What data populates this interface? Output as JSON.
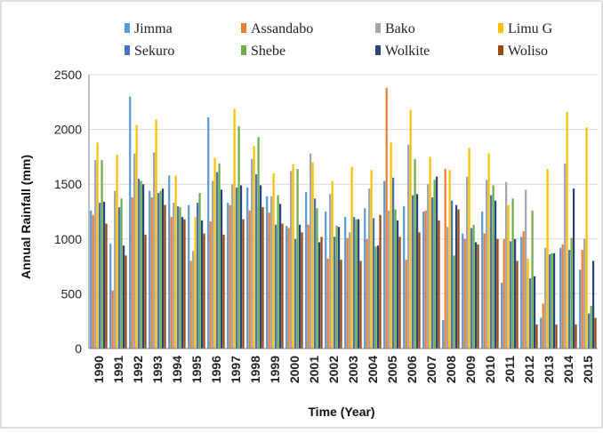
{
  "chart_data": {
    "type": "bar",
    "title": "",
    "xlabel": "Time (Year)",
    "ylabel": "Annual Rainfall (mm)",
    "ylim": [
      0,
      2500
    ],
    "yticks": [
      0,
      500,
      1000,
      1500,
      2000,
      2500
    ],
    "grid": "horizontal",
    "legend_position": "top",
    "categories": [
      "1990",
      "1991",
      "1992",
      "1993",
      "1994",
      "1995",
      "1996",
      "1997",
      "1998",
      "1999",
      "2000",
      "2001",
      "2002",
      "2003",
      "2004",
      "2005",
      "2006",
      "2007",
      "2008",
      "2009",
      "2010",
      "2011",
      "2012",
      "2013",
      "2014",
      "2015"
    ],
    "series": [
      {
        "name": "Jimma",
        "color": "#5b9bd5",
        "values": [
          1260,
          960,
          2300,
          1440,
          1580,
          1310,
          2110,
          1330,
          1470,
          1390,
          1120,
          1430,
          1250,
          1200,
          1280,
          1530,
          1300,
          1250,
          260,
          1050,
          1250,
          600,
          1020,
          280,
          920,
          720
        ]
      },
      {
        "name": "Assandabo",
        "color": "#ed7d31",
        "values": [
          1220,
          530,
          1380,
          1380,
          1200,
          800,
          1160,
          1310,
          1260,
          1240,
          1100,
          1130,
          820,
          1010,
          1000,
          2380,
          810,
          1260,
          1640,
          1000,
          1050,
          1000,
          1070,
          410,
          950,
          900
        ]
      },
      {
        "name": "Bako",
        "color": "#a5a5a5",
        "values": [
          1720,
          1440,
          1780,
          1790,
          1330,
          890,
          1530,
          1500,
          1730,
          1390,
          1620,
          1780,
          1410,
          1060,
          1460,
          1260,
          1860,
          1500,
          1110,
          1570,
          1540,
          1520,
          1450,
          920,
          1690,
          1000
        ]
      },
      {
        "name": "Limu G",
        "color": "#ffc000",
        "values": [
          1880,
          1770,
          2040,
          2090,
          1580,
          1200,
          1740,
          2190,
          1850,
          1600,
          1680,
          1700,
          1530,
          1660,
          1630,
          1880,
          2180,
          1750,
          1630,
          1830,
          1780,
          1310,
          820,
          1640,
          2160,
          2020
        ]
      },
      {
        "name": "Sekuro",
        "color": "#4472c4",
        "values": [
          1330,
          1290,
          1550,
          1420,
          1300,
          1330,
          1610,
          1470,
          1590,
          1130,
          1000,
          1370,
          1020,
          1200,
          1190,
          1560,
          1400,
          1380,
          1350,
          1100,
          1400,
          980,
          640,
          860,
          900,
          320
        ]
      },
      {
        "name": "Shebe",
        "color": "#70ad47",
        "values": [
          1720,
          1370,
          1530,
          1440,
          1290,
          1420,
          1690,
          2030,
          1930,
          1400,
          1640,
          1280,
          1120,
          1180,
          930,
          1270,
          1730,
          1540,
          850,
          1130,
          1490,
          1370,
          1260,
          870,
          1010,
          390
        ]
      },
      {
        "name": "Wolkite",
        "color": "#264478",
        "values": [
          1340,
          940,
          1500,
          1460,
          1200,
          1170,
          1450,
          1490,
          1490,
          1320,
          1130,
          970,
          1110,
          1180,
          940,
          1170,
          1410,
          1570,
          1310,
          970,
          1350,
          1000,
          660,
          870,
          1460,
          800
        ]
      },
      {
        "name": "Woliso",
        "color": "#9e480e",
        "values": [
          1140,
          850,
          1040,
          1310,
          1180,
          1050,
          1040,
          1180,
          1290,
          1140,
          1060,
          1020,
          810,
          800,
          1220,
          1020,
          1060,
          1170,
          1270,
          950,
          1000,
          800,
          220,
          220,
          220,
          280
        ]
      }
    ]
  }
}
